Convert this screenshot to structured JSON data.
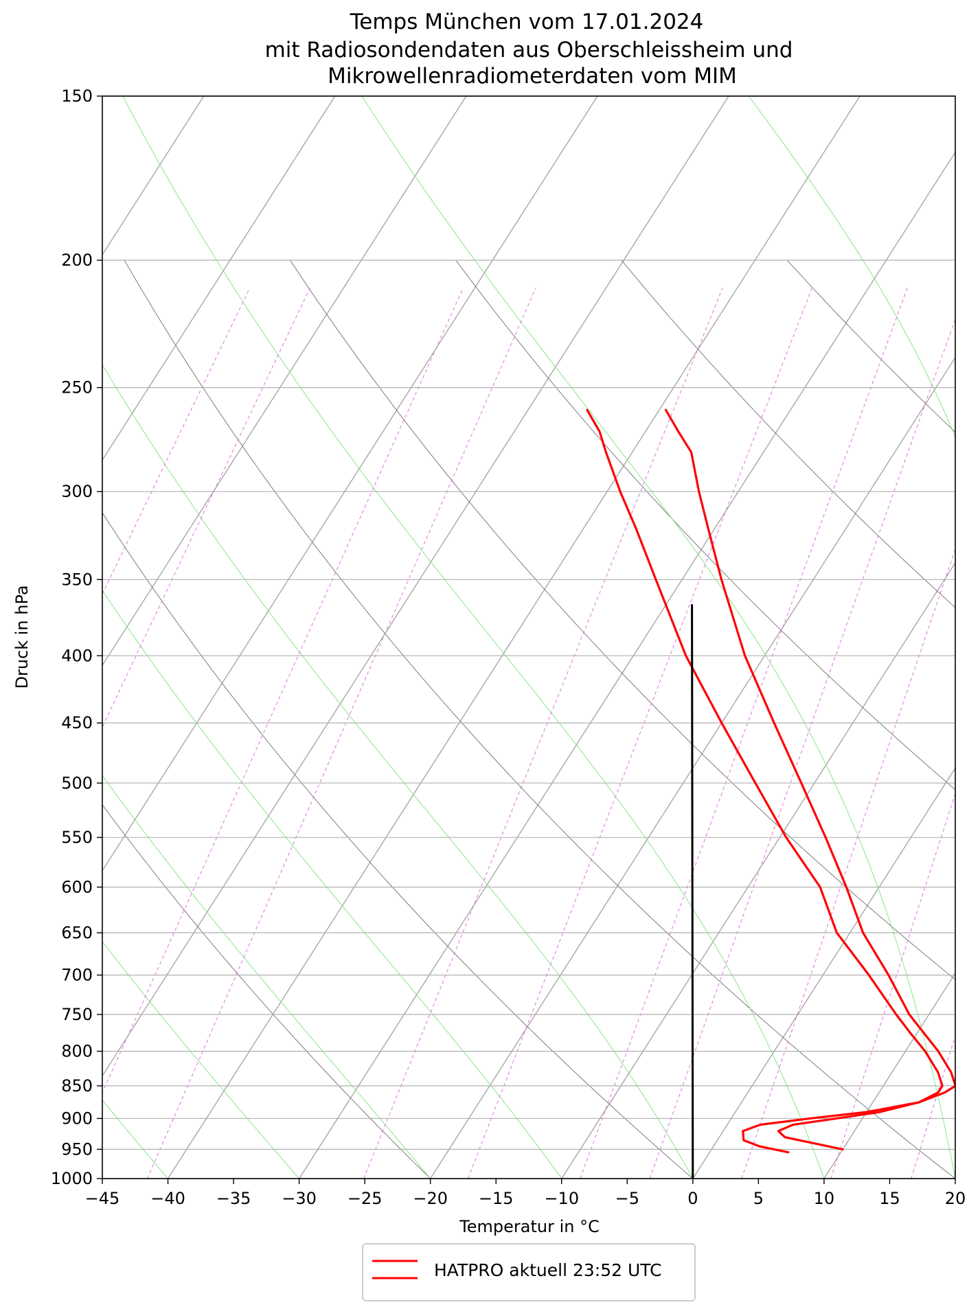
{
  "chart_data": {
    "type": "line",
    "subtype": "skew-T log-p diagram",
    "title_lines": [
      "Temps München vom 17.01.2024",
      "mit Radiosondendaten aus Oberschleissheim und",
      "Mikrowellenradiometerdaten vom MIM"
    ],
    "xlabel": "Temperatur in °C",
    "ylabel": "Druck in hPa",
    "xlim": [
      -45,
      20
    ],
    "ylim": [
      1000,
      150
    ],
    "y_scale": "log",
    "skew_degrees_per_decade": 64,
    "x_ticks": [
      -45,
      -40,
      -35,
      -30,
      -25,
      -20,
      -15,
      -10,
      -5,
      0,
      5,
      10,
      15,
      20
    ],
    "x_tick_labels": [
      "−45",
      "−40",
      "−35",
      "−30",
      "−25",
      "−20",
      "−15",
      "−10",
      "−5",
      "0",
      "5",
      "10",
      "15",
      "20"
    ],
    "y_ticks": [
      150,
      200,
      250,
      300,
      350,
      400,
      450,
      500,
      550,
      600,
      650,
      700,
      750,
      800,
      850,
      900,
      950,
      1000
    ],
    "y_tick_labels": [
      "150",
      "200",
      "250",
      "300",
      "350",
      "400",
      "450",
      "500",
      "550",
      "600",
      "650",
      "700",
      "750",
      "800",
      "850",
      "900",
      "950",
      "1000"
    ],
    "grid": true,
    "legend_position": "bottom-center, below plot",
    "legend_entries": [
      "HATPRO aktuell 23:52 UTC"
    ],
    "colors": {
      "profiles": "#ff0000",
      "reference_line": "#000000",
      "isotherms": "#a0a0a0",
      "dry_adiabats": "#7c7c7c",
      "moist_adiabats": "#86e786",
      "mixing_ratio_lines": "#e070e0",
      "gridlines": "#b0b0b0"
    },
    "background_lines": {
      "isotherms_celsius": [
        -100,
        -90,
        -80,
        -70,
        -60,
        -50,
        -40,
        -30,
        -20,
        -10,
        0,
        10,
        20
      ],
      "dry_adiabat_potential_temperature_celsius": [
        -20,
        0,
        20,
        40,
        60,
        80,
        100
      ],
      "moist_adiabat_start_celsius": [
        -40,
        -30,
        -20,
        -10,
        0,
        10,
        20,
        30
      ],
      "mixing_ratio_g_per_kg": [
        0.005,
        0.01,
        0.05,
        0.1,
        0.5,
        1,
        2,
        3,
        5,
        8,
        12,
        16,
        20,
        24
      ]
    },
    "series": [
      {
        "name": "HATPRO aktuell 23:52 UTC",
        "role": "temperature",
        "points": [
          {
            "p": 950,
            "t": 10.0
          },
          {
            "p": 940,
            "t": 7.5
          },
          {
            "p": 930,
            "t": 5.0
          },
          {
            "p": 920,
            "t": 4.2
          },
          {
            "p": 910,
            "t": 5.0
          },
          {
            "p": 900,
            "t": 8.0
          },
          {
            "p": 890,
            "t": 11.0
          },
          {
            "p": 875,
            "t": 13.5
          },
          {
            "p": 860,
            "t": 14.5
          },
          {
            "p": 850,
            "t": 14.5
          },
          {
            "p": 830,
            "t": 13.5
          },
          {
            "p": 800,
            "t": 11.5
          },
          {
            "p": 775,
            "t": 9.5
          },
          {
            "p": 750,
            "t": 7.5
          },
          {
            "p": 700,
            "t": 3.5
          },
          {
            "p": 650,
            "t": -1.0
          },
          {
            "p": 600,
            "t": -4.5
          },
          {
            "p": 550,
            "t": -9.5
          },
          {
            "p": 500,
            "t": -14.5
          },
          {
            "p": 450,
            "t": -20.0
          },
          {
            "p": 400,
            "t": -26.0
          },
          {
            "p": 350,
            "t": -32.0
          },
          {
            "p": 320,
            "t": -36.0
          },
          {
            "p": 300,
            "t": -39.0
          },
          {
            "p": 280,
            "t": -42.0
          },
          {
            "p": 270,
            "t": -43.5
          },
          {
            "p": 260,
            "t": -45.5
          }
        ]
      },
      {
        "name": "",
        "role": "temperature (second profile)",
        "points": [
          {
            "p": 955,
            "t": 6.0
          },
          {
            "p": 945,
            "t": 3.5
          },
          {
            "p": 935,
            "t": 2.0
          },
          {
            "p": 920,
            "t": 1.5
          },
          {
            "p": 910,
            "t": 2.5
          },
          {
            "p": 900,
            "t": 6.0
          },
          {
            "p": 890,
            "t": 10.0
          },
          {
            "p": 875,
            "t": 13.5
          },
          {
            "p": 860,
            "t": 15.0
          },
          {
            "p": 850,
            "t": 15.5
          },
          {
            "p": 830,
            "t": 14.5
          },
          {
            "p": 800,
            "t": 12.5
          },
          {
            "p": 750,
            "t": 8.5
          },
          {
            "p": 700,
            "t": 5.0
          },
          {
            "p": 650,
            "t": 1.0
          },
          {
            "p": 600,
            "t": -2.5
          },
          {
            "p": 550,
            "t": -6.5
          },
          {
            "p": 500,
            "t": -11.0
          },
          {
            "p": 450,
            "t": -16.0
          },
          {
            "p": 400,
            "t": -21.5
          },
          {
            "p": 350,
            "t": -27.0
          },
          {
            "p": 320,
            "t": -30.5
          },
          {
            "p": 300,
            "t": -33.0
          },
          {
            "p": 280,
            "t": -35.5
          },
          {
            "p": 270,
            "t": -37.5
          },
          {
            "p": 260,
            "t": -39.5
          }
        ]
      },
      {
        "name": "",
        "role": "reference line",
        "points": [
          {
            "p": 1000,
            "t": 0.0
          },
          {
            "p": 366,
            "t": -28.0
          }
        ]
      }
    ]
  }
}
